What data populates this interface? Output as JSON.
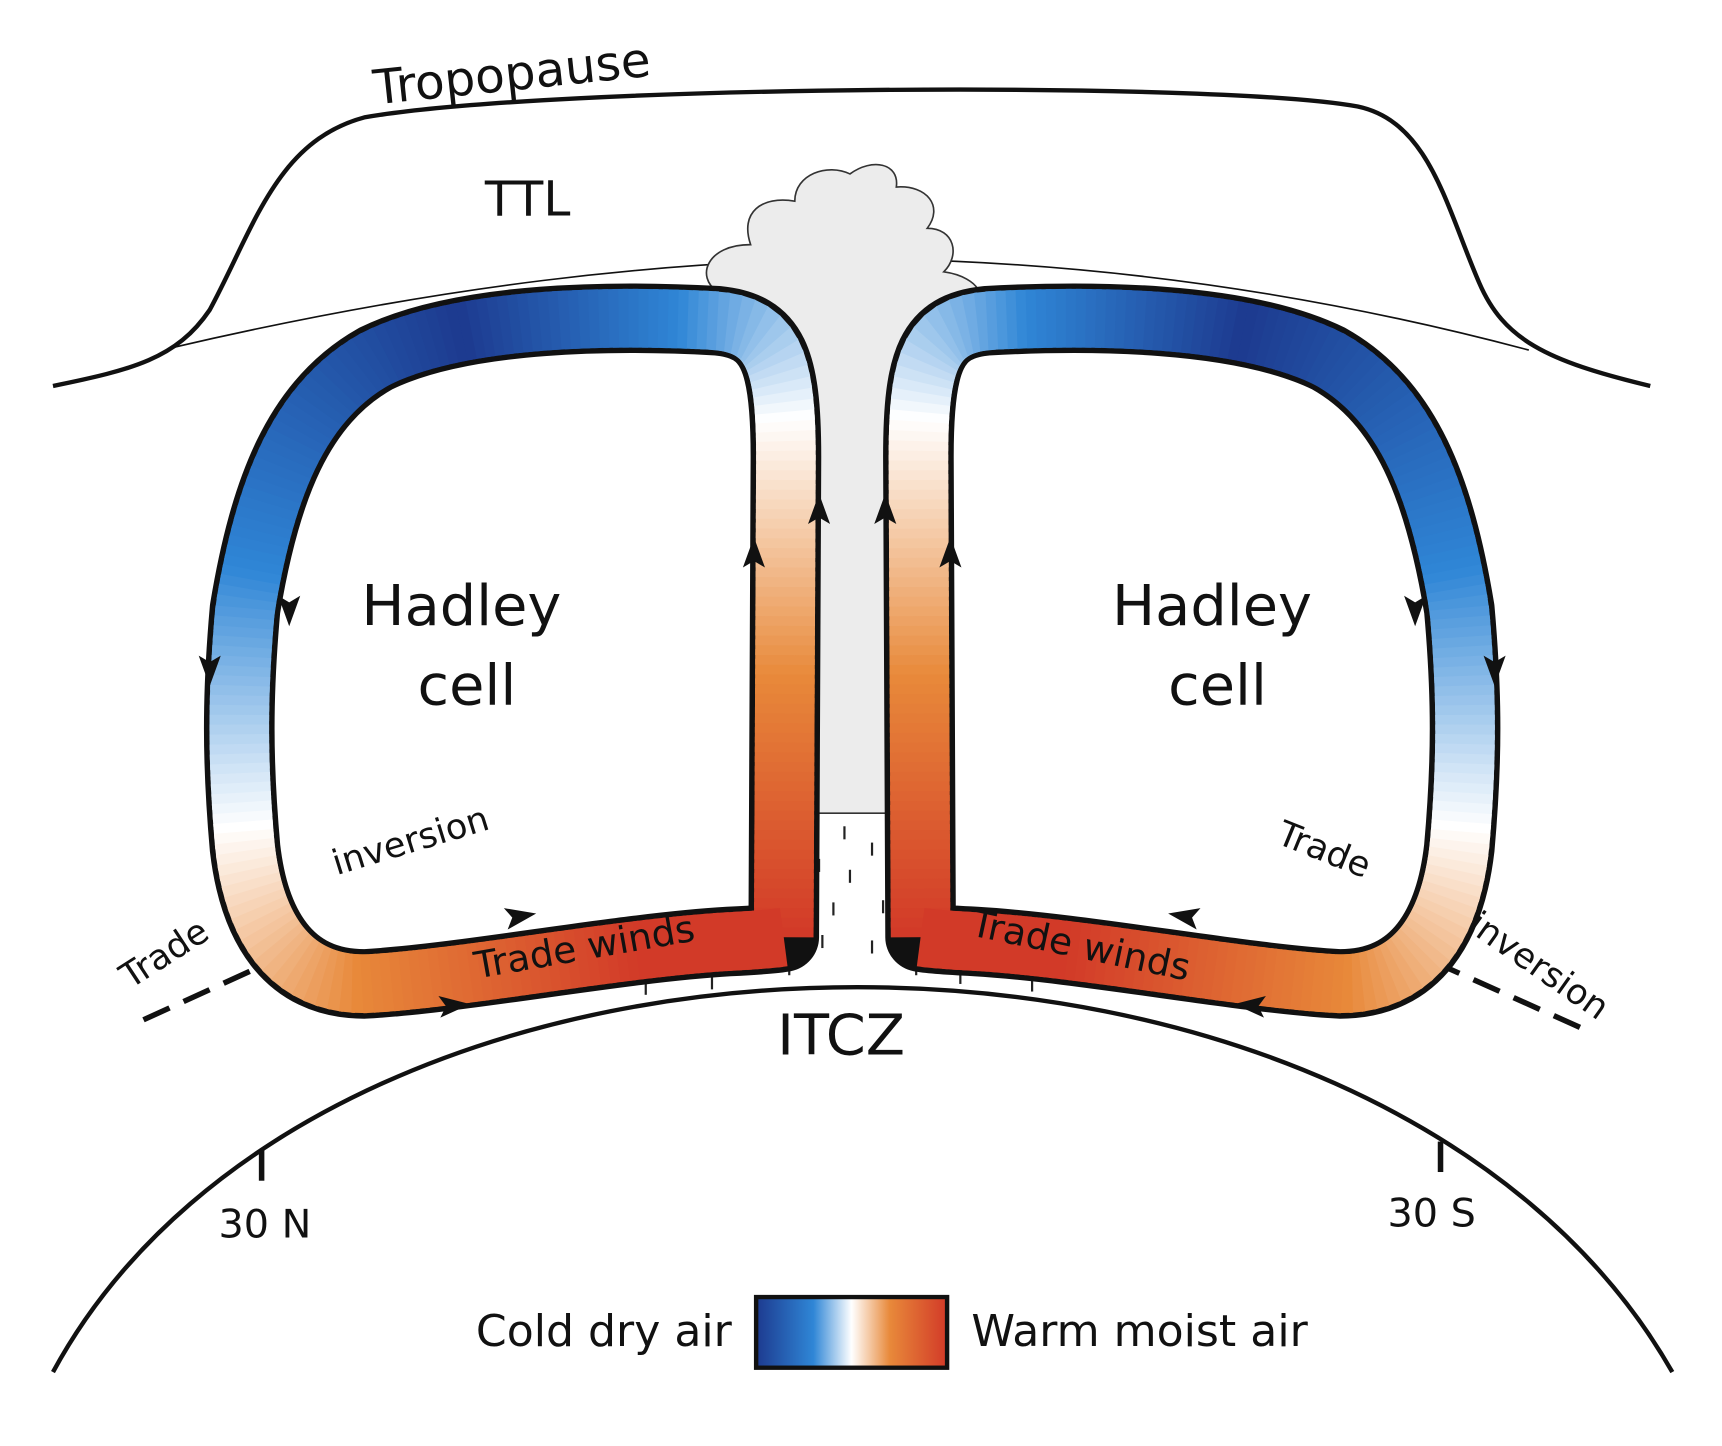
{
  "labels": {
    "tropopause": "Tropopause",
    "ttl": "TTL",
    "hadley_left_1": "Hadley",
    "hadley_left_2": "cell",
    "hadley_right_1": "Hadley",
    "hadley_right_2": "cell",
    "trade_left": "Trade",
    "inversion_left": "inversion",
    "trade_right": "Trade",
    "inversion_right": "inversion",
    "trade_winds_left": "Trade winds",
    "trade_winds_right": "Trade winds",
    "itcz": "ITCZ",
    "lat_north": "30 N",
    "lat_south": "30 S"
  },
  "legend": {
    "cold_label": "Cold dry air",
    "warm_label": "Warm moist air",
    "colors": [
      "#1d3a8f",
      "#2f86d6",
      "#ffffff",
      "#e8893a",
      "#d23a28"
    ]
  },
  "colors": {
    "cloud": "#ececec",
    "outline": "#111111"
  }
}
